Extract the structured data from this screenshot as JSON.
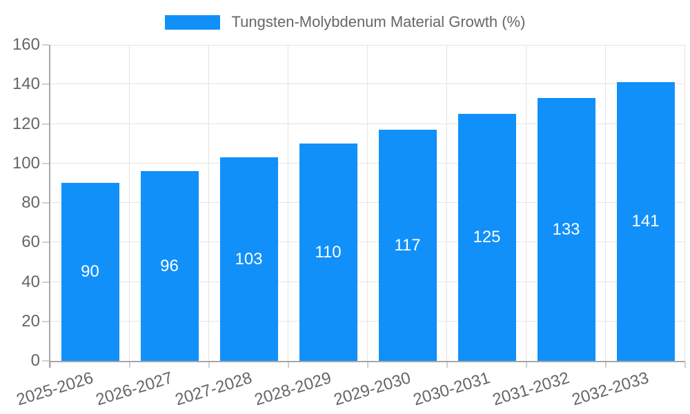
{
  "legend": {
    "label": "Tungsten-Molybdenum Material Growth (%)"
  },
  "chart_data": {
    "type": "bar",
    "title": "Tungsten-Molybdenum Material Growth (%)",
    "categories": [
      "2025-2026",
      "2026-2027",
      "2027-2028",
      "2028-2029",
      "2029-2030",
      "2030-2031",
      "2031-2032",
      "2032-2033"
    ],
    "series": [
      {
        "name": "Tungsten-Molybdenum Material Growth (%)",
        "values": [
          90,
          96,
          103,
          110,
          117,
          125,
          133,
          141
        ]
      }
    ],
    "value_labels": [
      "90",
      "96",
      "103",
      "110",
      "117",
      "125",
      "133",
      "141"
    ],
    "xlabel": "",
    "ylabel": "",
    "ylim": [
      0,
      160
    ],
    "yticks": [
      0,
      20,
      40,
      60,
      80,
      100,
      120,
      140,
      160
    ],
    "grid": true,
    "legend_position": "top",
    "x_label_rotation_deg": -17,
    "colors": {
      "bar": "#1190fa",
      "value_label": "#ffffff",
      "axis_text": "#666666",
      "grid_line": "#e4e4e4",
      "axis_line": "#a6a6a6",
      "tick_mark": "#cfcfcf",
      "background": "#ffffff"
    }
  }
}
